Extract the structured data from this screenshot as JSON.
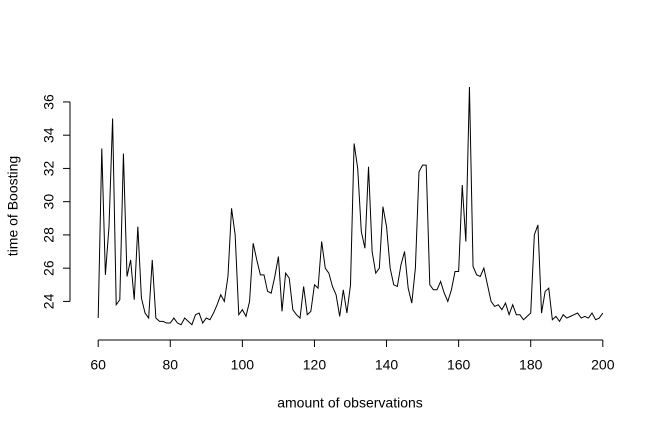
{
  "chart_data": {
    "type": "line",
    "xlabel": "amount of observations",
    "ylabel": "time of Boosting",
    "color": "#000000",
    "x": [
      60,
      61,
      62,
      63,
      64,
      65,
      66,
      67,
      68,
      69,
      70,
      71,
      72,
      73,
      74,
      75,
      76,
      77,
      78,
      79,
      80,
      81,
      82,
      83,
      84,
      85,
      86,
      87,
      88,
      89,
      90,
      91,
      92,
      93,
      94,
      95,
      96,
      97,
      98,
      99,
      100,
      101,
      102,
      103,
      104,
      105,
      106,
      107,
      108,
      109,
      110,
      111,
      112,
      113,
      114,
      115,
      116,
      117,
      118,
      119,
      120,
      121,
      122,
      123,
      124,
      125,
      126,
      127,
      128,
      129,
      130,
      131,
      132,
      133,
      134,
      135,
      136,
      137,
      138,
      139,
      140,
      141,
      142,
      143,
      144,
      145,
      146,
      147,
      148,
      149,
      150,
      151,
      152,
      153,
      154,
      155,
      156,
      157,
      158,
      159,
      160,
      161,
      162,
      163,
      164,
      165,
      166,
      167,
      168,
      169,
      170,
      171,
      172,
      173,
      174,
      175,
      176,
      177,
      178,
      179,
      180,
      181,
      182,
      183,
      184,
      185,
      186,
      187,
      188,
      189,
      190,
      191,
      192,
      193,
      194,
      195,
      196,
      197,
      198,
      199,
      200
    ],
    "values": [
      23.0,
      33.2,
      25.6,
      28.5,
      35.0,
      23.8,
      24.1,
      32.9,
      25.5,
      26.5,
      24.1,
      28.5,
      24.2,
      23.3,
      23.0,
      26.5,
      23.0,
      22.8,
      22.8,
      22.7,
      22.7,
      23.0,
      22.7,
      22.6,
      23.0,
      22.8,
      22.6,
      23.2,
      23.3,
      22.7,
      23.0,
      22.9,
      23.3,
      23.8,
      24.4,
      24.0,
      25.5,
      29.6,
      28.0,
      23.2,
      23.5,
      23.1,
      24.0,
      27.5,
      26.5,
      25.6,
      25.6,
      24.6,
      24.5,
      25.5,
      26.7,
      23.4,
      25.7,
      25.4,
      23.5,
      23.2,
      23.0,
      24.9,
      23.2,
      23.4,
      25.0,
      24.8,
      27.6,
      26.0,
      25.7,
      24.9,
      24.4,
      23.1,
      24.7,
      23.3,
      25.0,
      33.5,
      32.0,
      28.2,
      27.2,
      32.1,
      27.0,
      25.7,
      26.0,
      29.7,
      28.5,
      26.0,
      25.0,
      24.9,
      26.2,
      27.0,
      24.8,
      23.9,
      26.0,
      31.8,
      32.2,
      32.2,
      25.0,
      24.7,
      24.7,
      25.2,
      24.5,
      24.0,
      24.7,
      25.8,
      25.8,
      31.0,
      27.6,
      36.9,
      26.1,
      25.6,
      25.5,
      26.0,
      25.0,
      24.0,
      23.7,
      23.8,
      23.5,
      23.9,
      23.2,
      23.8,
      23.2,
      23.2,
      22.9,
      23.1,
      23.3,
      28.0,
      28.6,
      23.3,
      24.6,
      24.8,
      22.9,
      23.1,
      22.8,
      23.2,
      23.0,
      23.1,
      23.2,
      23.3,
      23.0,
      23.1,
      23.0,
      23.3,
      22.9,
      23.0,
      23.3
    ],
    "xlim": [
      54.4,
      205.6
    ],
    "xticks": [
      60,
      80,
      100,
      120,
      140,
      160,
      180,
      200
    ],
    "ylim": [
      22.1,
      37.5
    ],
    "yticks": [
      24,
      26,
      28,
      30,
      32,
      34,
      36
    ]
  }
}
